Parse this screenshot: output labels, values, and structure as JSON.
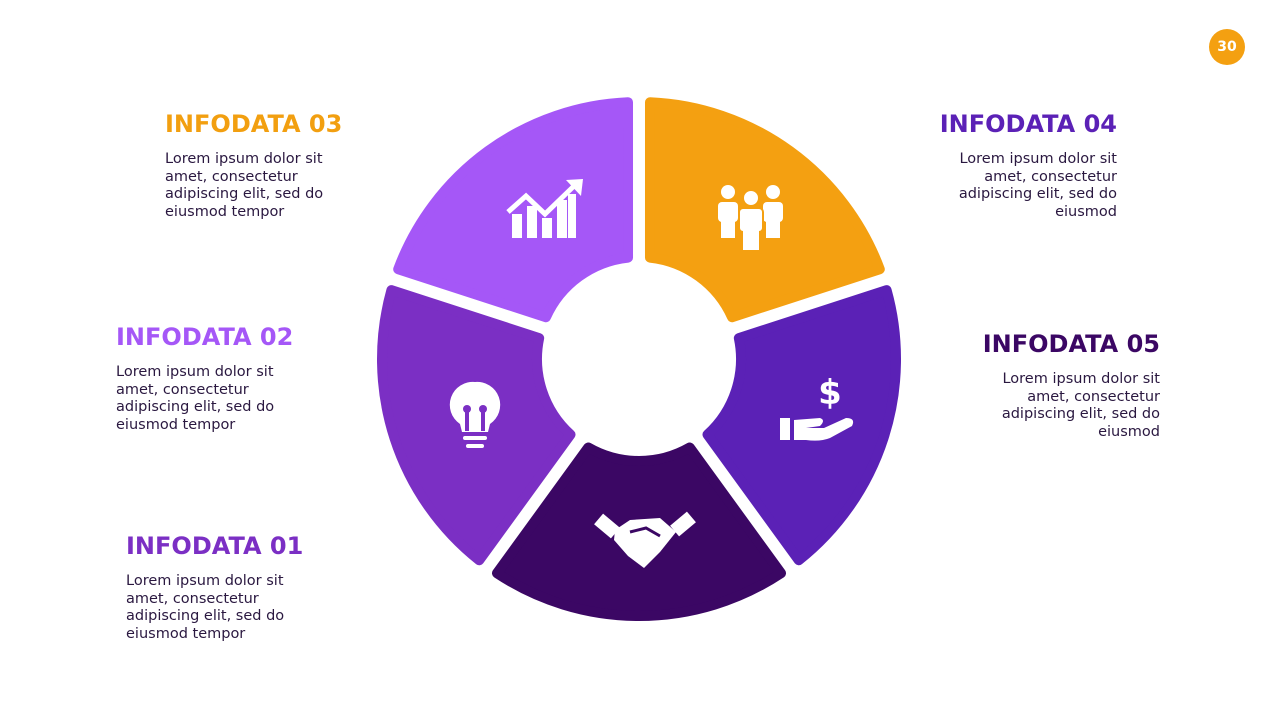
{
  "page_number": "30",
  "items": [
    {
      "title": "INFODATA 01",
      "body": [
        "Lorem ipsum dolor sit",
        "amet, consectetur",
        "adipiscing elit, sed do",
        "eiusmod tempor"
      ]
    },
    {
      "title": "INFODATA 02",
      "body": [
        "Lorem ipsum dolor sit",
        "amet, consectetur",
        "adipiscing elit, sed do",
        "eiusmod tempor"
      ]
    },
    {
      "title": "INFODATA 03",
      "body": [
        "Lorem ipsum dolor sit",
        "amet, consectetur",
        "adipiscing elit, sed do",
        "eiusmod tempor"
      ]
    },
    {
      "title": "INFODATA 04",
      "body": [
        "Lorem ipsum dolor sit",
        "amet, consectetur",
        "adipiscing elit, sed do",
        "eiusmod"
      ]
    },
    {
      "title": "INFODATA 05",
      "body": [
        "Lorem ipsum dolor sit",
        "amet, consectetur",
        "adipiscing elit, sed do",
        "eiusmod"
      ]
    }
  ]
}
